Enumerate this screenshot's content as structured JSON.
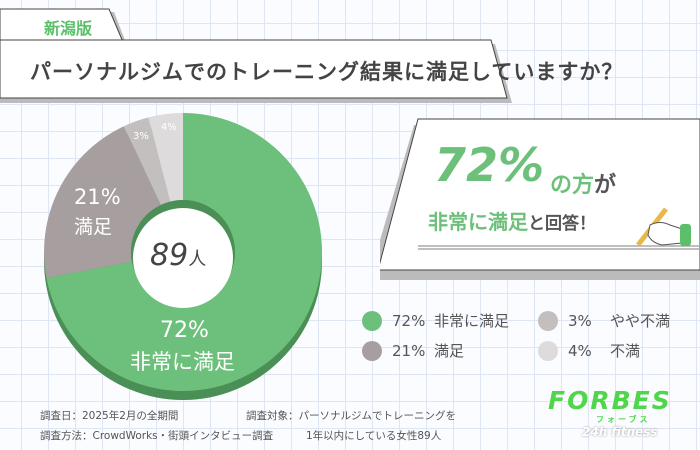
{
  "tab_label": "新潟版",
  "title": "パーソナルジムでのトレーニング結果に満足していますか？",
  "callout": {
    "percent": "72%",
    "of": "の方",
    "ga": "が",
    "highlight": "非常に満足",
    "rest": "と回答！"
  },
  "center_label": {
    "number": "89",
    "unit": "人"
  },
  "chart_data": {
    "type": "pie",
    "donut": true,
    "total_label": "89人",
    "slices": [
      {
        "label": "非常に満足",
        "value": 72,
        "display": "72%",
        "color": "#6dc07b"
      },
      {
        "label": "満足",
        "value": 21,
        "display": "21%",
        "color": "#a79f9f"
      },
      {
        "label": "やや不満",
        "value": 3,
        "display": "3%",
        "color": "#c3bfbf"
      },
      {
        "label": "不満",
        "value": 4,
        "display": "4%",
        "color": "#dddbdc"
      }
    ],
    "start_angle_deg": 0,
    "direction": "clockwise from 非常に満足"
  },
  "legend": [
    {
      "percent": "72%",
      "label": "非常に満足",
      "color": "#6dc07b"
    },
    {
      "percent": "21%",
      "label": "満足",
      "color": "#a79f9f"
    },
    {
      "percent": "3%",
      "label": "やや不満",
      "color": "#c3bfbf"
    },
    {
      "percent": "4%",
      "label": "不満",
      "color": "#dddbdc"
    }
  ],
  "footer": {
    "date": "調査日：2025年2月の全期間",
    "method": "調査方法：CrowdWorks・街頭インタビュー調査",
    "target1": "調査対象：パーソナルジムでトレーニングを",
    "target2": "1年以内にしている女性89人"
  },
  "logo": {
    "main": "FORBES",
    "kana": "フォーブス",
    "sub": "24h fitness"
  }
}
